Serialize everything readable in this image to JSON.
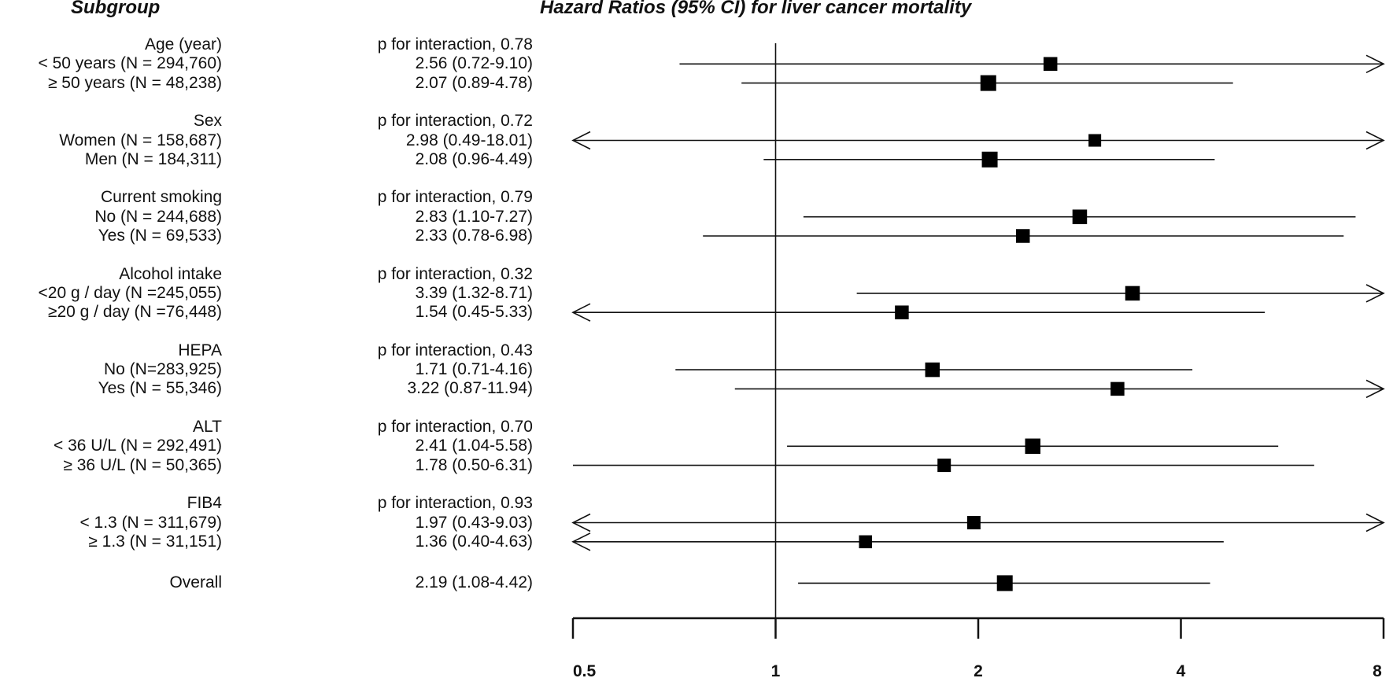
{
  "headers": {
    "subgroup": "Subgroup",
    "plot": "Hazard Ratios (95% CI) for liver cancer mortality"
  },
  "chart_data": {
    "type": "forest",
    "title": "Hazard Ratios (95% CI) for liver cancer mortality",
    "xscale": "log2",
    "xlim": [
      0.5,
      8
    ],
    "reference_line": 1,
    "xticks": [
      0.5,
      1,
      2,
      4,
      8
    ],
    "xtick_labels": [
      "0.5",
      "1",
      "2",
      "4",
      "8"
    ],
    "groups": [
      {
        "name": "Age (year)",
        "interaction": "p for interaction, 0.78",
        "rows": [
          {
            "label": "< 50 years (N = 294,760)",
            "hr_text": "2.56 (0.72-9.10)",
            "hr": 2.56,
            "lo": 0.72,
            "hi": 9.1,
            "weight": 0.75
          },
          {
            "label": "≥ 50 years (N = 48,238)",
            "hr_text": "2.07 (0.89-4.78)",
            "hr": 2.07,
            "lo": 0.89,
            "hi": 4.78,
            "weight": 1.0
          }
        ]
      },
      {
        "name": "Sex",
        "interaction": "p for interaction, 0.72",
        "rows": [
          {
            "label": "Women (N = 158,687)",
            "hr_text": "2.98 (0.49-18.01)",
            "hr": 2.98,
            "lo": 0.49,
            "hi": 18.01,
            "weight": 0.6
          },
          {
            "label": "Men (N = 184,311)",
            "hr_text": "2.08 (0.96-4.49)",
            "hr": 2.08,
            "lo": 0.96,
            "hi": 4.49,
            "weight": 1.0
          }
        ]
      },
      {
        "name": "Current smoking",
        "interaction": "p for interaction, 0.79",
        "rows": [
          {
            "label": "No (N = 244,688)",
            "hr_text": "2.83 (1.10-7.27)",
            "hr": 2.83,
            "lo": 1.1,
            "hi": 7.27,
            "weight": 0.85
          },
          {
            "label": "Yes (N = 69,533)",
            "hr_text": "2.33 (0.78-6.98)",
            "hr": 2.33,
            "lo": 0.78,
            "hi": 6.98,
            "weight": 0.75
          }
        ]
      },
      {
        "name": "Alcohol intake",
        "interaction": "p for interaction, 0.32",
        "rows": [
          {
            "label": "<20 g / day (N =245,055)",
            "hr_text": "3.39 (1.32-8.71)",
            "hr": 3.39,
            "lo": 1.32,
            "hi": 8.71,
            "weight": 0.85
          },
          {
            "label": "≥20 g / day (N =76,448)",
            "hr_text": "1.54 (0.45-5.33)",
            "hr": 1.54,
            "lo": 0.45,
            "hi": 5.33,
            "weight": 0.75
          }
        ]
      },
      {
        "name": "HEPA",
        "interaction": "p for interaction, 0.43",
        "rows": [
          {
            "label": "No (N=283,925)",
            "hr_text": "1.71 (0.71-4.16)",
            "hr": 1.71,
            "lo": 0.71,
            "hi": 4.16,
            "weight": 0.85
          },
          {
            "label": "Yes (N = 55,346)",
            "hr_text": "3.22 (0.87-11.94)",
            "hr": 3.22,
            "lo": 0.87,
            "hi": 11.94,
            "weight": 0.75
          }
        ]
      },
      {
        "name": "ALT",
        "interaction": "p for interaction, 0.70",
        "rows": [
          {
            "label": "< 36 U/L (N = 292,491)",
            "hr_text": "2.41 (1.04-5.58)",
            "hr": 2.41,
            "lo": 1.04,
            "hi": 5.58,
            "weight": 0.95
          },
          {
            "label": "≥ 36 U/L (N = 50,365)",
            "hr_text": "1.78 (0.50-6.31)",
            "hr": 1.78,
            "lo": 0.5,
            "hi": 6.31,
            "weight": 0.7
          }
        ]
      },
      {
        "name": "FIB4",
        "interaction": "p for interaction, 0.93",
        "rows": [
          {
            "label": "< 1.3 (N = 311,679)",
            "hr_text": "1.97 (0.43-9.03)",
            "hr": 1.97,
            "lo": 0.43,
            "hi": 9.03,
            "weight": 0.7
          },
          {
            "label": "≥ 1.3 (N = 31,151)",
            "hr_text": "1.36 (0.40-4.63)",
            "hr": 1.36,
            "lo": 0.4,
            "hi": 4.63,
            "weight": 0.65
          }
        ]
      }
    ],
    "overall": {
      "label": "Overall",
      "hr_text": "2.19 (1.08-4.42)",
      "hr": 2.19,
      "lo": 1.08,
      "hi": 4.42,
      "weight": 1.0
    }
  }
}
